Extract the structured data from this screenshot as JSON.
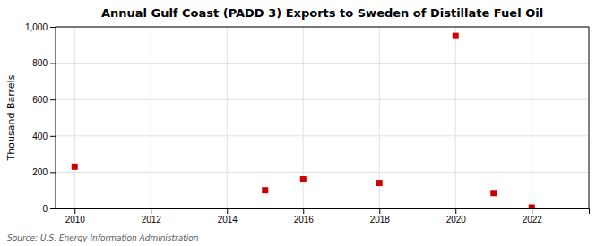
{
  "chart_data": {
    "type": "scatter",
    "title": "Annual Gulf Coast (PADD 3) Exports to Sweden of Distillate Fuel Oil",
    "y_label": "Thousand Barrels",
    "source": "Source: U.S. Energy Information Administration",
    "x": [
      2010,
      2015,
      2016,
      2018,
      2020,
      2021,
      2022
    ],
    "values": [
      230,
      100,
      160,
      140,
      950,
      85,
      5
    ],
    "color": "#cc0000",
    "marker": "square",
    "xlim": [
      2009.5,
      2023.5
    ],
    "ylim": [
      0,
      1000
    ],
    "xticks": [
      2010,
      2012,
      2014,
      2016,
      2018,
      2020,
      2022
    ],
    "yticks": [
      0,
      200,
      400,
      600,
      800,
      {
        "value": 1000,
        "label": "1,000"
      }
    ],
    "grid": true
  }
}
